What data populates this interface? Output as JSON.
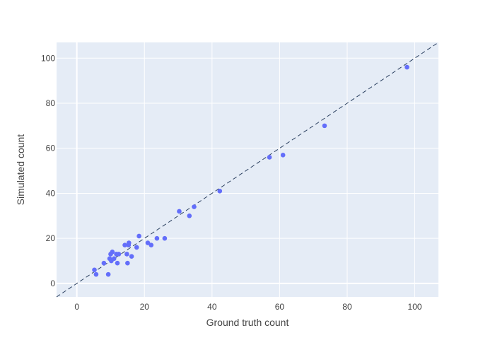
{
  "chart_data": {
    "type": "scatter",
    "title": "",
    "xlabel": "Ground truth count",
    "ylabel": "Simulated count",
    "xlim": [
      -6,
      107
    ],
    "ylim": [
      -6,
      107
    ],
    "xticks": [
      0,
      20,
      40,
      60,
      80,
      100
    ],
    "yticks": [
      0,
      20,
      40,
      60,
      80,
      100
    ],
    "grid": true,
    "legend": "none",
    "reference_line": {
      "style": "dashed",
      "from": [
        -6,
        -6
      ],
      "to": [
        107,
        107
      ],
      "color": "#2a3f5f"
    },
    "colors": {
      "plot_background": "#E5ECF6",
      "grid": "#ffffff",
      "marker": "#636EFA",
      "text": "#444444"
    },
    "series": [
      {
        "points": [
          {
            "x": 5.2,
            "y": 6
          },
          {
            "x": 5.7,
            "y": 4
          },
          {
            "x": 8,
            "y": 9
          },
          {
            "x": 9.3,
            "y": 4
          },
          {
            "x": 9.7,
            "y": 11
          },
          {
            "x": 10,
            "y": 13
          },
          {
            "x": 10.2,
            "y": 10
          },
          {
            "x": 10.5,
            "y": 14
          },
          {
            "x": 11,
            "y": 11
          },
          {
            "x": 11.7,
            "y": 13
          },
          {
            "x": 12,
            "y": 9
          },
          {
            "x": 12.4,
            "y": 13
          },
          {
            "x": 14.2,
            "y": 17
          },
          {
            "x": 14.8,
            "y": 13
          },
          {
            "x": 15,
            "y": 9
          },
          {
            "x": 15.3,
            "y": 17
          },
          {
            "x": 15.4,
            "y": 18
          },
          {
            "x": 16.2,
            "y": 12
          },
          {
            "x": 17.7,
            "y": 16
          },
          {
            "x": 18.4,
            "y": 21
          },
          {
            "x": 21,
            "y": 18
          },
          {
            "x": 22,
            "y": 17
          },
          {
            "x": 23.7,
            "y": 20
          },
          {
            "x": 26,
            "y": 20
          },
          {
            "x": 30.3,
            "y": 32
          },
          {
            "x": 33.3,
            "y": 30
          },
          {
            "x": 34.7,
            "y": 34
          },
          {
            "x": 42.3,
            "y": 41
          },
          {
            "x": 57,
            "y": 56
          },
          {
            "x": 61,
            "y": 57
          },
          {
            "x": 73.3,
            "y": 70
          },
          {
            "x": 97.7,
            "y": 96
          }
        ]
      }
    ]
  }
}
